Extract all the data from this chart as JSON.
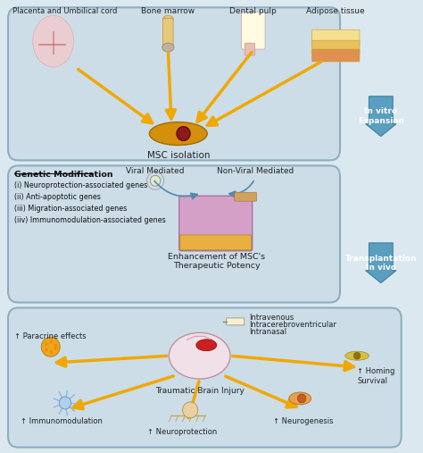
{
  "bg_color": "#dce8f0",
  "panel_color": "#ccdde8",
  "panel_border": "#8aafc0",
  "arrow_color": "#f0a800",
  "blue_arrow_color": "#4a8ab5",
  "panel1": {
    "labels": [
      "Placenta and Umbilical cord",
      "Bone marrow",
      "Dental pulp",
      "Adipose tissue"
    ],
    "label_bottom": "MSC isolation"
  },
  "panel2": {
    "label_left_title": "Genetic Modification",
    "label_left_items": [
      "(i) Neuroprotection-associated genes",
      "(ii) Anti-apoptotic genes",
      "(iii) Migration-associated genes",
      "(iiv) Immunomodulation-associated genes"
    ],
    "label_viral": "Viral Mediated",
    "label_nonviral": "Non-Viral Mediated",
    "label_bottom": "Enhancement of MSC's\nTherapeutic Potency"
  },
  "side_arrow1": "In vitro\nExpansion",
  "side_arrow2": "Transplantation\nIn vivo",
  "panel3": {
    "label_center": "Traumatic Brain Injury",
    "label_route1": "Intravenous",
    "label_route2": "Intracerebroventricular",
    "label_route3": "Intranasal",
    "labels_out": [
      "↑ Paracrine effects",
      "↑ Immunomodulation",
      "↑ Neuroprotection",
      "↑ Neurogenesis",
      "↑ Homing\nSurvival"
    ]
  }
}
